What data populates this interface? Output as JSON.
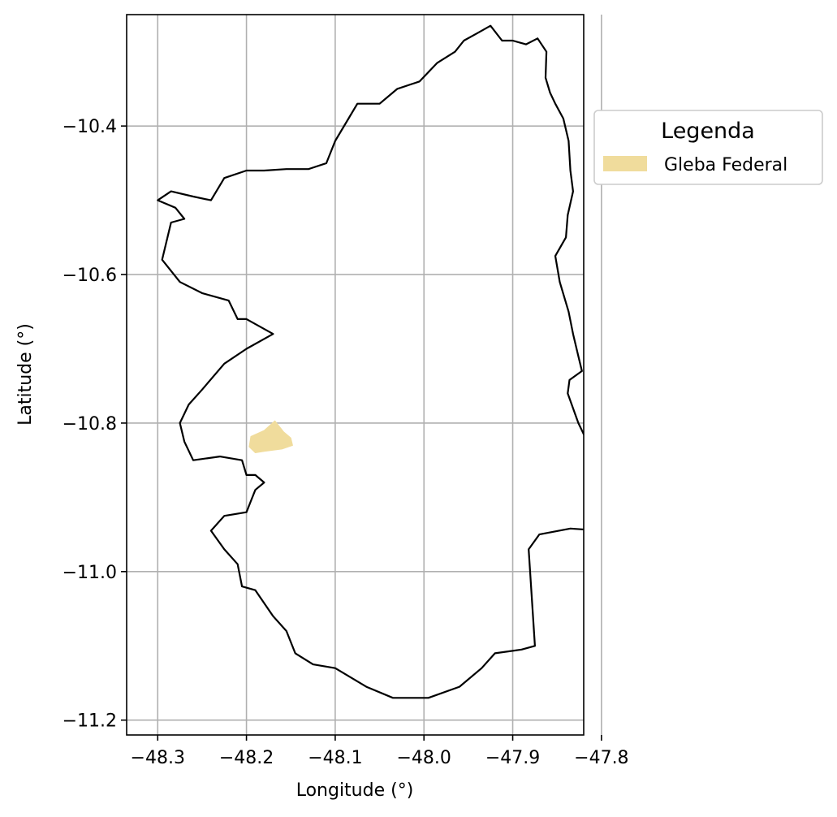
{
  "chart_data": {
    "type": "map",
    "xlabel": "Longitude (°)",
    "ylabel": "Latitude (°)",
    "xlim": [
      -48.335,
      -47.82
    ],
    "ylim": [
      -11.22,
      -10.25
    ],
    "grid": true,
    "xticks": [
      -48.3,
      -48.2,
      -48.1,
      -48.0,
      -47.9,
      -47.8
    ],
    "xtick_labels": [
      "−48.3",
      "−48.2",
      "−48.1",
      "−48.0",
      "−47.9",
      "−47.8"
    ],
    "yticks": [
      -10.4,
      -10.6,
      -10.8,
      -11.0,
      -11.2
    ],
    "ytick_labels": [
      "−10.4",
      "−10.6",
      "−10.8",
      "−11.0",
      "−11.2"
    ],
    "legend": {
      "title": "Legenda",
      "placement": "outside-right-top",
      "entries": [
        {
          "label": "Gleba Federal",
          "color": "#f0dc9c"
        }
      ]
    },
    "layers": [
      {
        "kind": "outline",
        "stroke": "#000000",
        "coordinates": [
          [
            -47.94,
            -10.275
          ],
          [
            -47.925,
            -10.265
          ],
          [
            -47.912,
            -10.285
          ],
          [
            -47.9,
            -10.285
          ],
          [
            -47.885,
            -10.29
          ],
          [
            -47.872,
            -10.282
          ],
          [
            -47.862,
            -10.3
          ],
          [
            -47.863,
            -10.335
          ],
          [
            -47.858,
            -10.355
          ],
          [
            -47.852,
            -10.37
          ],
          [
            -47.843,
            -10.39
          ],
          [
            -47.837,
            -10.42
          ],
          [
            -47.835,
            -10.46
          ],
          [
            -47.832,
            -10.488
          ],
          [
            -47.838,
            -10.52
          ],
          [
            -47.84,
            -10.55
          ],
          [
            -47.852,
            -10.575
          ],
          [
            -47.847,
            -10.61
          ],
          [
            -47.837,
            -10.65
          ],
          [
            -47.832,
            -10.68
          ],
          [
            -47.826,
            -10.71
          ],
          [
            -47.822,
            -10.73
          ],
          [
            -47.836,
            -10.742
          ],
          [
            -47.838,
            -10.76
          ],
          [
            -47.826,
            -10.8
          ],
          [
            -47.816,
            -10.825
          ],
          [
            -47.808,
            -10.86
          ],
          [
            -47.8,
            -10.88
          ],
          [
            -47.788,
            -10.9
          ],
          [
            -47.795,
            -10.91
          ],
          [
            -47.815,
            -10.925
          ],
          [
            -47.8,
            -10.945
          ],
          [
            -47.835,
            -10.942
          ],
          [
            -47.87,
            -10.95
          ],
          [
            -47.882,
            -10.97
          ],
          [
            -47.875,
            -11.1
          ],
          [
            -47.89,
            -11.105
          ],
          [
            -47.92,
            -11.11
          ],
          [
            -47.935,
            -11.13
          ],
          [
            -47.96,
            -11.155
          ],
          [
            -47.995,
            -11.17
          ],
          [
            -48.035,
            -11.17
          ],
          [
            -48.065,
            -11.155
          ],
          [
            -48.1,
            -11.13
          ],
          [
            -48.125,
            -11.125
          ],
          [
            -48.145,
            -11.11
          ],
          [
            -48.155,
            -11.08
          ],
          [
            -48.17,
            -11.06
          ],
          [
            -48.19,
            -11.025
          ],
          [
            -48.205,
            -11.02
          ],
          [
            -48.21,
            -10.99
          ],
          [
            -48.225,
            -10.97
          ],
          [
            -48.24,
            -10.945
          ],
          [
            -48.225,
            -10.925
          ],
          [
            -48.2,
            -10.92
          ],
          [
            -48.195,
            -10.905
          ],
          [
            -48.19,
            -10.89
          ],
          [
            -48.18,
            -10.88
          ],
          [
            -48.19,
            -10.87
          ],
          [
            -48.2,
            -10.87
          ],
          [
            -48.205,
            -10.85
          ],
          [
            -48.23,
            -10.845
          ],
          [
            -48.26,
            -10.85
          ],
          [
            -48.27,
            -10.825
          ],
          [
            -48.275,
            -10.8
          ],
          [
            -48.265,
            -10.775
          ],
          [
            -48.25,
            -10.755
          ],
          [
            -48.225,
            -10.72
          ],
          [
            -48.2,
            -10.7
          ],
          [
            -48.17,
            -10.68
          ],
          [
            -48.2,
            -10.66
          ],
          [
            -48.21,
            -10.66
          ],
          [
            -48.22,
            -10.635
          ],
          [
            -48.25,
            -10.625
          ],
          [
            -48.275,
            -10.61
          ],
          [
            -48.295,
            -10.58
          ],
          [
            -48.285,
            -10.53
          ],
          [
            -48.27,
            -10.525
          ],
          [
            -48.28,
            -10.51
          ],
          [
            -48.3,
            -10.5
          ],
          [
            -48.285,
            -10.488
          ],
          [
            -48.26,
            -10.495
          ],
          [
            -48.24,
            -10.5
          ],
          [
            -48.225,
            -10.47
          ],
          [
            -48.2,
            -10.46
          ],
          [
            -48.18,
            -10.46
          ],
          [
            -48.155,
            -10.458
          ],
          [
            -48.13,
            -10.458
          ],
          [
            -48.11,
            -10.45
          ],
          [
            -48.1,
            -10.42
          ],
          [
            -48.085,
            -10.39
          ],
          [
            -48.075,
            -10.37
          ],
          [
            -48.05,
            -10.37
          ],
          [
            -48.03,
            -10.35
          ],
          [
            -48.005,
            -10.34
          ],
          [
            -47.985,
            -10.315
          ],
          [
            -47.965,
            -10.3
          ],
          [
            -47.955,
            -10.285
          ],
          [
            -47.94,
            -10.275
          ]
        ]
      },
      {
        "kind": "fill",
        "name": "Gleba Federal",
        "fill": "#f0dc9c",
        "coordinates": [
          [
            -48.195,
            -10.818
          ],
          [
            -48.18,
            -10.81
          ],
          [
            -48.168,
            -10.797
          ],
          [
            -48.158,
            -10.812
          ],
          [
            -48.15,
            -10.82
          ],
          [
            -48.148,
            -10.83
          ],
          [
            -48.16,
            -10.835
          ],
          [
            -48.18,
            -10.838
          ],
          [
            -48.19,
            -10.84
          ],
          [
            -48.197,
            -10.832
          ],
          [
            -48.195,
            -10.818
          ]
        ]
      }
    ]
  }
}
